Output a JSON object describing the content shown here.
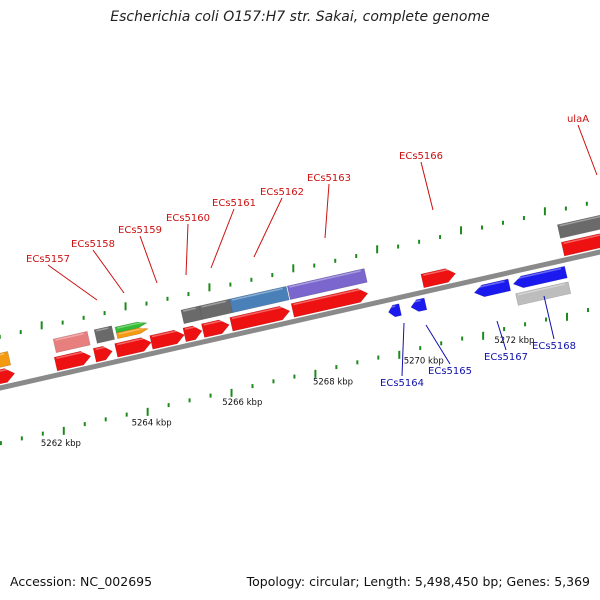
{
  "title": "Escherichia coli O157:H7 str. Sakai, complete genome",
  "footer": {
    "accession": "Accession: NC_002695",
    "summary": "Topology: circular; Length: 5,498,450 bp; Genes: 5,369"
  },
  "colors": {
    "backbone": "#8a8a8a",
    "tick": "#1e8a1e",
    "forward_label": "#cc1111",
    "reverse_label": "#1111aa",
    "tick_label": "#111111"
  },
  "ticks": [
    {
      "kbp": 5262,
      "label": "5262 kbp"
    },
    {
      "kbp": 5264,
      "label": "5264 kbp"
    },
    {
      "kbp": 5266,
      "label": "5266 kbp"
    },
    {
      "kbp": 5268,
      "label": "5268 kbp"
    },
    {
      "kbp": 5270,
      "label": "5270 kbp"
    },
    {
      "kbp": 5272,
      "label": "5272 kbp"
    }
  ],
  "forward_genes": [
    {
      "label": "ECs5157"
    },
    {
      "label": "ECs5158"
    },
    {
      "label": "ECs5159"
    },
    {
      "label": "ECs5160"
    },
    {
      "label": "ECs5161"
    },
    {
      "label": "ECs5162"
    },
    {
      "label": "ECs5163"
    },
    {
      "label": "ECs5166"
    },
    {
      "label": "ulaA"
    }
  ],
  "reverse_genes": [
    {
      "label": "ECs5164"
    },
    {
      "label": "ECs5165"
    },
    {
      "label": "ECs5167"
    },
    {
      "label": "ECs5168"
    }
  ]
}
